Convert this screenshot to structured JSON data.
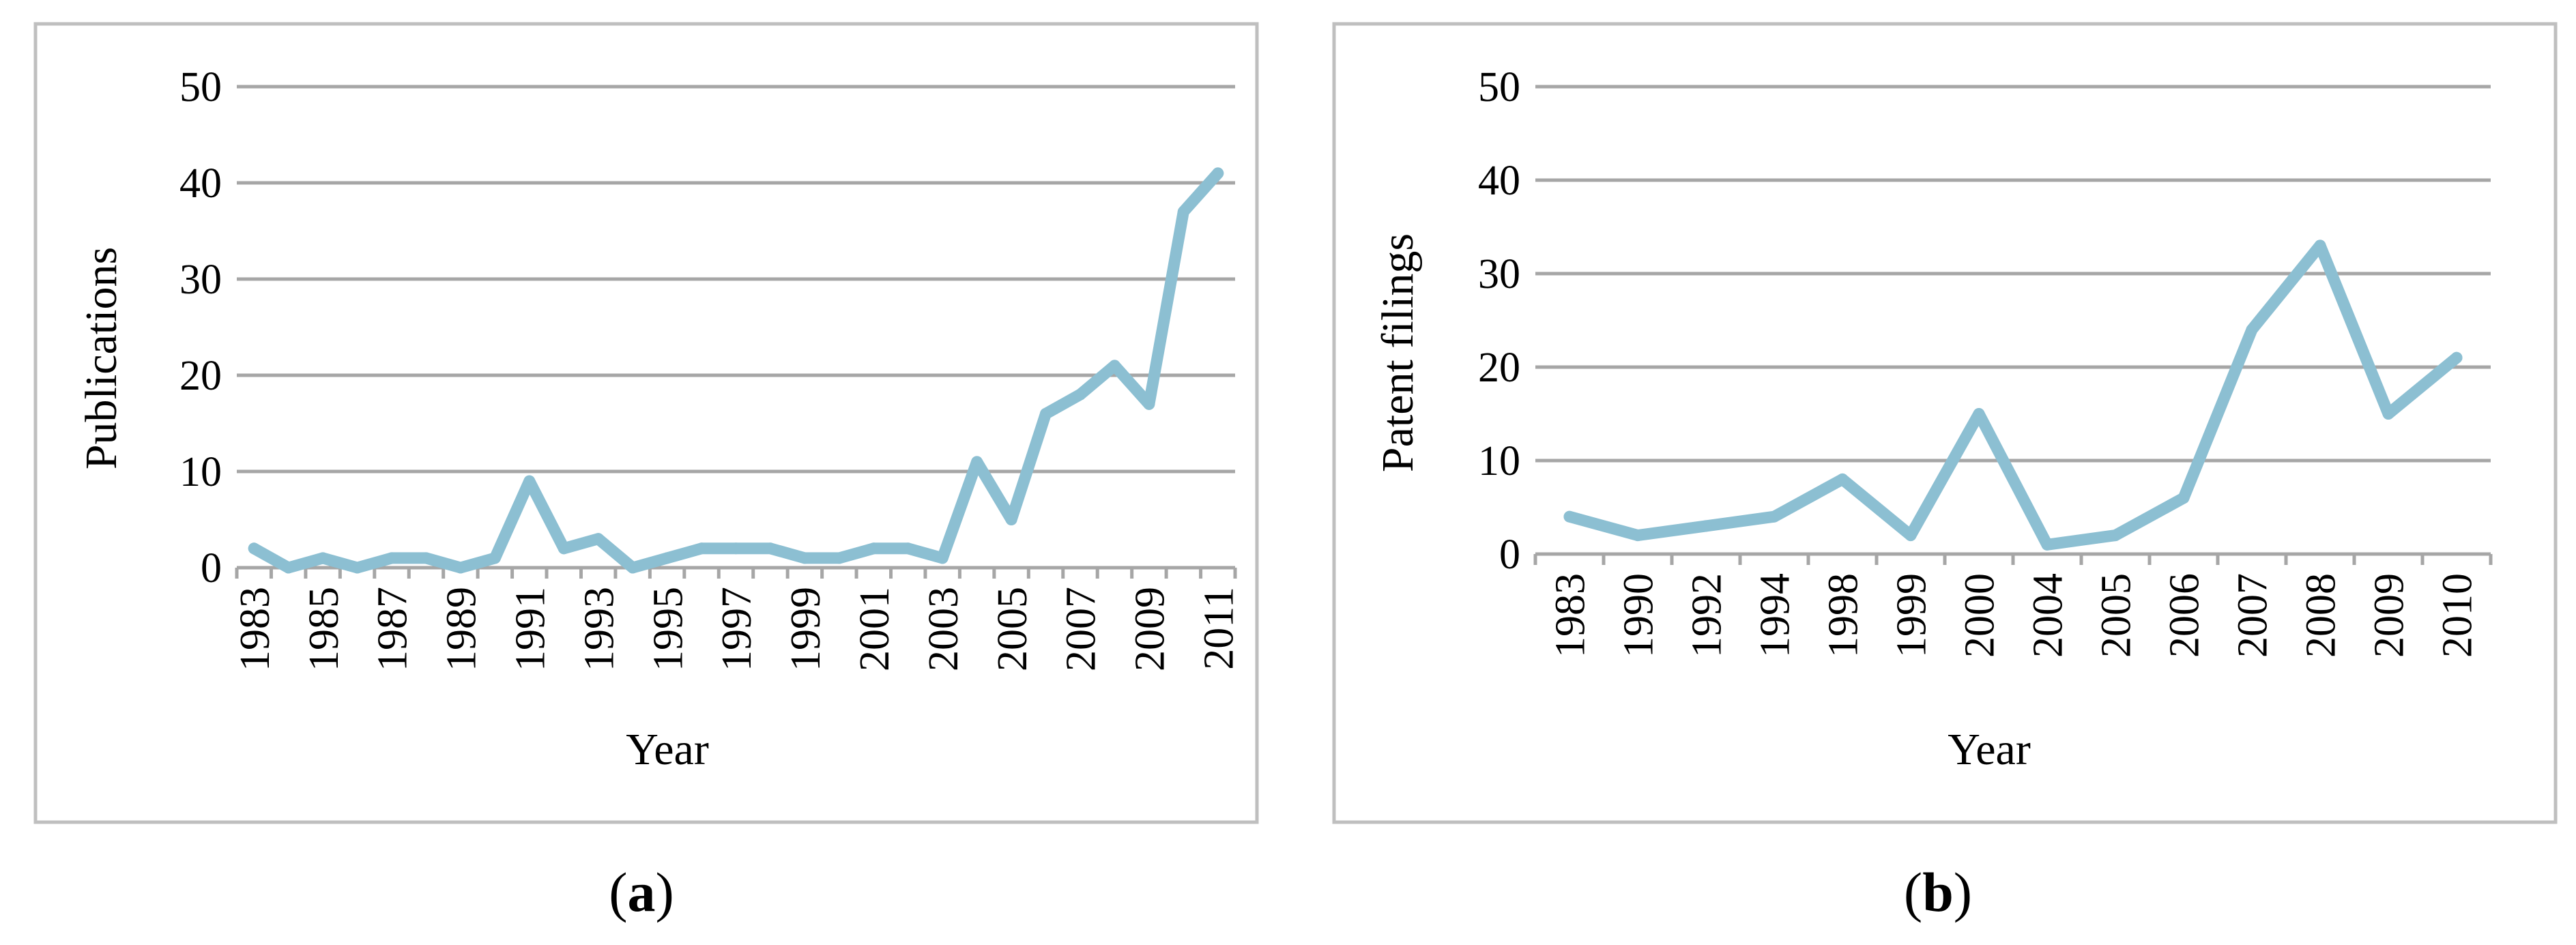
{
  "colors": {
    "series": "#8cbfd2",
    "grid": "#a6a6a6",
    "frame": "#bfbfbf"
  },
  "chart_data": [
    {
      "type": "line",
      "caption": {
        "open": "(",
        "letter": "a",
        "close": ")"
      },
      "title": "",
      "xlabel": "Year",
      "ylabel": "Publications",
      "ylim": [
        0,
        50
      ],
      "yticks": [
        0,
        10,
        20,
        30,
        40,
        50
      ],
      "grid": true,
      "legend": "none",
      "x": [
        "1983",
        "1984",
        "1985",
        "1986",
        "1987",
        "1988",
        "1989",
        "1990",
        "1991",
        "1992",
        "1993",
        "1994",
        "1995",
        "1996",
        "1997",
        "1998",
        "1999",
        "2000",
        "2001",
        "2002",
        "2003",
        "2004",
        "2005",
        "2006",
        "2007",
        "2008",
        "2009",
        "2010",
        "2011"
      ],
      "xtick_labels": [
        "1983",
        "",
        "1985",
        "",
        "1987",
        "",
        "1989",
        "",
        "1991",
        "",
        "1993",
        "",
        "1995",
        "",
        "1997",
        "",
        "1999",
        "",
        "2001",
        "",
        "2003",
        "",
        "2005",
        "",
        "2007",
        "",
        "2009",
        "",
        "2011"
      ],
      "series": [
        {
          "values": [
            2,
            0,
            1,
            0,
            1,
            1,
            0,
            1,
            9,
            2,
            3,
            0,
            1,
            2,
            2,
            2,
            1,
            1,
            2,
            2,
            1,
            11,
            5,
            16,
            18,
            21,
            17,
            37,
            41
          ]
        }
      ]
    },
    {
      "type": "line",
      "caption": {
        "open": "(",
        "letter": "b",
        "close": ")"
      },
      "title": "",
      "xlabel": "Year",
      "ylabel": "Patent filings",
      "ylim": [
        0,
        50
      ],
      "yticks": [
        0,
        10,
        20,
        30,
        40,
        50
      ],
      "grid": true,
      "legend": "none",
      "x": [
        "1983",
        "1990",
        "1992",
        "1994",
        "1998",
        "1999",
        "2000",
        "2004",
        "2005",
        "2006",
        "2007",
        "2008",
        "2009",
        "2010"
      ],
      "xtick_labels": [
        "1983",
        "1990",
        "1992",
        "1994",
        "1998",
        "1999",
        "2000",
        "2004",
        "2005",
        "2006",
        "2007",
        "2008",
        "2009",
        "2010"
      ],
      "series": [
        {
          "values": [
            4,
            2,
            3,
            4,
            8,
            2,
            15,
            1,
            2,
            6,
            24,
            33,
            15,
            21
          ]
        }
      ]
    }
  ]
}
